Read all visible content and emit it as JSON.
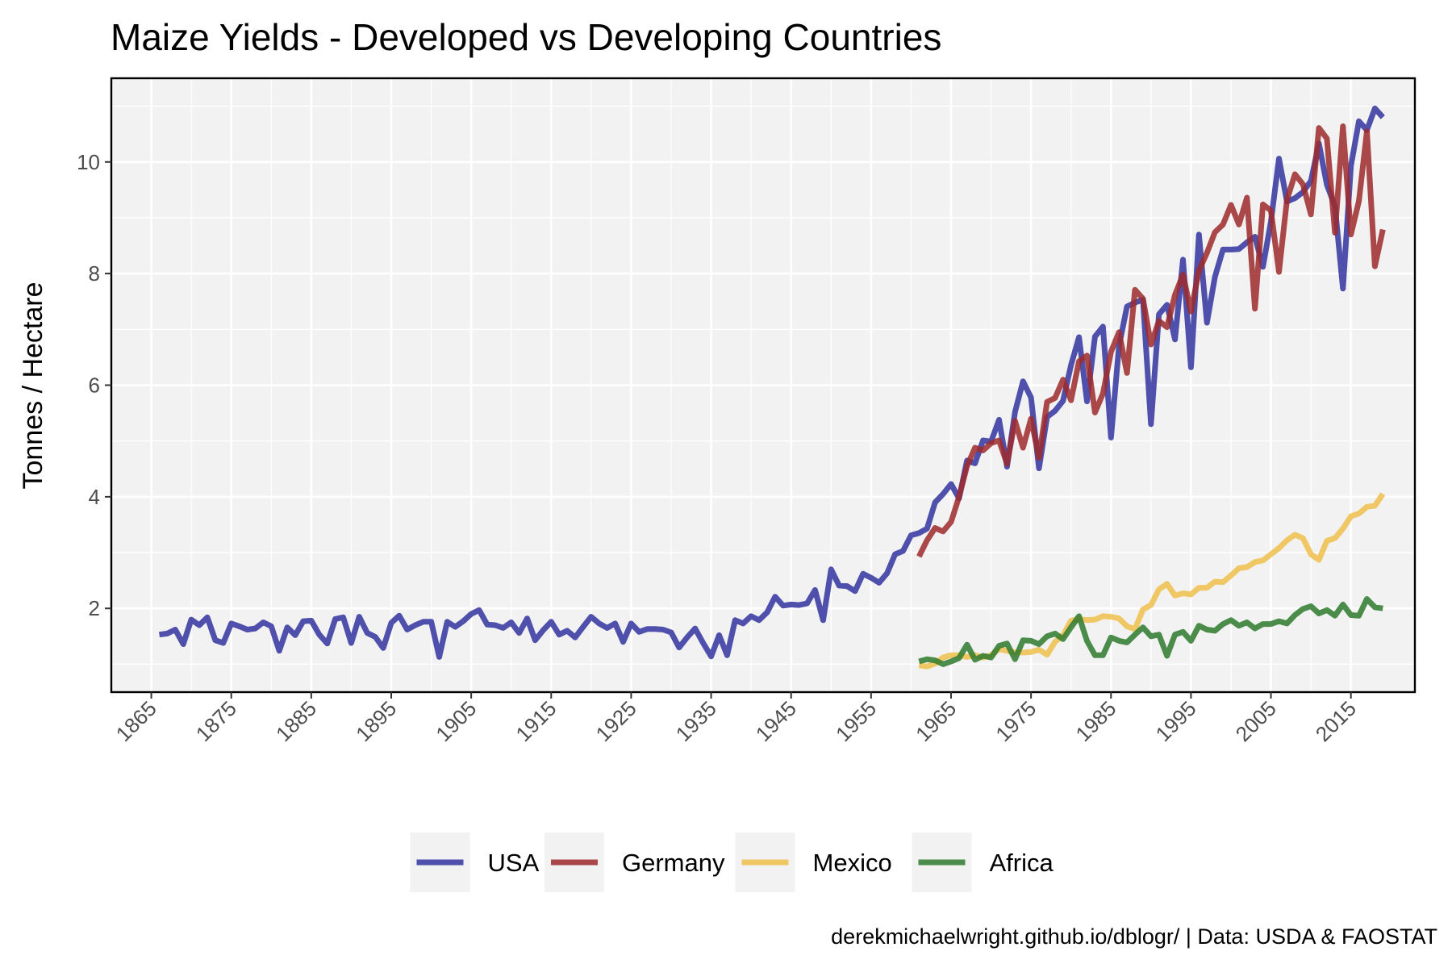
{
  "chart_data": {
    "type": "line",
    "title": "Maize Yields - Developed vs Developing Countries",
    "xlabel": "",
    "ylabel": "Tonnes / Hectare",
    "caption": "derekmichaelwright.github.io/dblogr/ | Data: USDA & FAOSTAT",
    "xlim": [
      1860,
      2023
    ],
    "ylim": [
      0.5,
      11.5
    ],
    "x_ticks": [
      1865,
      1875,
      1885,
      1895,
      1905,
      1915,
      1925,
      1935,
      1945,
      1955,
      1965,
      1975,
      1985,
      1995,
      2005,
      2015
    ],
    "y_ticks": [
      2,
      4,
      6,
      8,
      10
    ],
    "grid": true,
    "legend_position": "bottom",
    "series": [
      {
        "name": "USA",
        "color": "#3333a0",
        "x_start": 1866,
        "values": [
          1.53,
          1.55,
          1.62,
          1.36,
          1.8,
          1.7,
          1.84,
          1.43,
          1.38,
          1.73,
          1.68,
          1.62,
          1.64,
          1.75,
          1.68,
          1.24,
          1.66,
          1.52,
          1.77,
          1.78,
          1.53,
          1.37,
          1.81,
          1.84,
          1.38,
          1.85,
          1.56,
          1.49,
          1.29,
          1.74,
          1.87,
          1.62,
          1.7,
          1.76,
          1.76,
          1.13,
          1.76,
          1.67,
          1.77,
          1.9,
          1.97,
          1.71,
          1.7,
          1.65,
          1.75,
          1.56,
          1.82,
          1.43,
          1.61,
          1.76,
          1.53,
          1.6,
          1.48,
          1.67,
          1.85,
          1.73,
          1.65,
          1.73,
          1.4,
          1.73,
          1.58,
          1.63,
          1.63,
          1.62,
          1.57,
          1.3,
          1.48,
          1.64,
          1.38,
          1.14,
          1.52,
          1.16,
          1.79,
          1.73,
          1.86,
          1.79,
          1.93,
          2.21,
          2.05,
          2.07,
          2.06,
          2.09,
          2.33,
          1.79,
          2.7,
          2.41,
          2.4,
          2.31,
          2.62,
          2.55,
          2.46,
          2.63,
          2.97,
          3.03,
          3.31,
          3.35,
          3.43,
          3.9,
          4.05,
          4.23,
          3.97,
          4.65,
          4.6,
          5.01,
          4.99,
          5.38,
          4.54,
          5.52,
          6.07,
          5.78,
          4.51,
          5.43,
          5.54,
          5.72,
          6.36,
          6.86,
          5.71,
          6.87,
          7.05,
          5.06,
          6.7,
          7.41,
          7.48,
          7.53,
          5.3,
          7.27,
          7.44,
          6.82,
          8.25,
          6.32,
          8.7,
          7.12,
          7.94,
          8.43,
          8.43,
          8.44,
          8.56,
          8.66,
          8.12,
          8.93,
          10.06,
          9.29,
          9.35,
          9.46,
          9.66,
          10.33,
          9.59,
          9.21,
          7.73,
          9.93,
          10.73,
          10.57,
          10.96,
          10.8
        ]
      },
      {
        "name": "Germany",
        "color": "#9e2a2b",
        "x_start": 1961,
        "values": [
          2.93,
          3.22,
          3.44,
          3.38,
          3.55,
          4.0,
          4.55,
          4.88,
          4.83,
          4.96,
          5.01,
          4.59,
          5.36,
          4.88,
          5.4,
          4.7,
          5.7,
          5.77,
          6.1,
          5.73,
          6.43,
          6.53,
          5.51,
          5.85,
          6.6,
          6.95,
          6.22,
          7.71,
          7.55,
          6.73,
          7.15,
          7.04,
          7.62,
          7.98,
          7.32,
          8.05,
          8.37,
          8.74,
          8.88,
          9.23,
          8.88,
          9.36,
          7.37,
          9.24,
          9.13,
          8.03,
          9.32,
          9.78,
          9.6,
          9.06,
          10.61,
          10.42,
          8.73,
          10.64,
          8.7,
          9.3,
          10.55,
          8.13,
          8.79
        ]
      },
      {
        "name": "Mexico",
        "color": "#f0c04c",
        "x_start": 1961,
        "values": [
          0.98,
          0.96,
          1.01,
          1.12,
          1.16,
          1.16,
          1.13,
          1.16,
          1.12,
          1.16,
          1.27,
          1.24,
          1.21,
          1.21,
          1.22,
          1.26,
          1.17,
          1.4,
          1.52,
          1.78,
          1.81,
          1.79,
          1.8,
          1.86,
          1.85,
          1.82,
          1.68,
          1.63,
          1.98,
          2.06,
          2.34,
          2.44,
          2.23,
          2.27,
          2.25,
          2.37,
          2.37,
          2.48,
          2.47,
          2.59,
          2.72,
          2.74,
          2.83,
          2.86,
          2.97,
          3.08,
          3.22,
          3.32,
          3.26,
          2.97,
          2.87,
          3.21,
          3.26,
          3.43,
          3.65,
          3.7,
          3.82,
          3.84,
          4.05
        ]
      },
      {
        "name": "Africa",
        "color": "#2e7a2e",
        "x_start": 1961,
        "values": [
          1.05,
          1.09,
          1.07,
          1.0,
          1.05,
          1.11,
          1.35,
          1.08,
          1.15,
          1.12,
          1.33,
          1.37,
          1.09,
          1.43,
          1.42,
          1.36,
          1.5,
          1.55,
          1.45,
          1.66,
          1.86,
          1.42,
          1.16,
          1.16,
          1.48,
          1.42,
          1.39,
          1.53,
          1.66,
          1.5,
          1.53,
          1.15,
          1.53,
          1.58,
          1.42,
          1.69,
          1.62,
          1.6,
          1.72,
          1.79,
          1.69,
          1.75,
          1.64,
          1.72,
          1.72,
          1.77,
          1.73,
          1.88,
          1.99,
          2.04,
          1.91,
          1.97,
          1.87,
          2.07,
          1.88,
          1.87,
          2.17,
          2.02,
          2.0
        ]
      }
    ]
  }
}
